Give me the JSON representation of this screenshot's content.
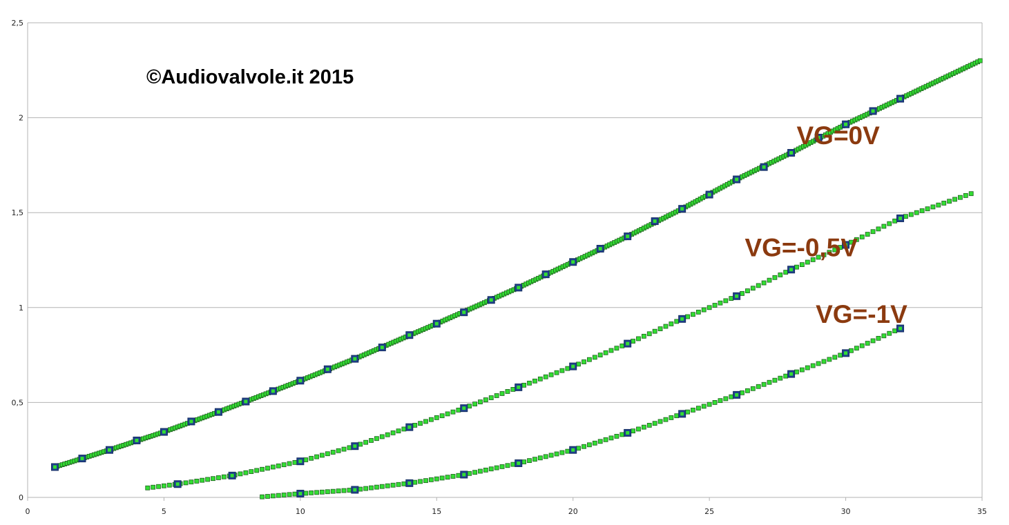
{
  "watermark": "©Audiovalvole.it 2015",
  "colors": {
    "background": "#ffffff",
    "grid": "#b3b3b3",
    "label": "#8b3a0f",
    "marker_fill": "#33dd33",
    "marker_edge": "#1f5f1f",
    "measured_fill": "#1f3f8f"
  },
  "chart_data": {
    "type": "scatter",
    "title": "",
    "xlabel": "",
    "ylabel": "",
    "xlim": [
      0,
      35
    ],
    "ylim": [
      0,
      2.5
    ],
    "grid": true,
    "legend": "none",
    "x_ticks": [
      "0",
      "5",
      "10",
      "15",
      "20",
      "25",
      "30",
      "35"
    ],
    "y_ticks": [
      "0",
      "0,5",
      "1",
      "1,5",
      "2",
      "2,5"
    ],
    "series": [
      {
        "name": "VG=0V",
        "label_anchor": {
          "x": 28.2,
          "y": 1.86
        },
        "curve": {
          "x_start": 1,
          "x_end": 35,
          "points": [
            [
              1,
              0.16
            ],
            [
              3,
              0.25
            ],
            [
              5,
              0.345
            ],
            [
              7,
              0.45
            ],
            [
              10,
              0.615
            ],
            [
              12,
              0.73
            ],
            [
              15,
              0.915
            ],
            [
              18,
              1.105
            ],
            [
              20,
              1.24
            ],
            [
              22,
              1.375
            ],
            [
              24,
              1.52
            ],
            [
              26,
              1.675
            ],
            [
              28,
              1.815
            ],
            [
              30,
              1.965
            ],
            [
              32,
              2.1
            ],
            [
              35,
              2.305
            ]
          ]
        },
        "measured": [
          [
            1,
            0.16
          ],
          [
            2,
            0.205
          ],
          [
            3,
            0.25
          ],
          [
            4,
            0.3
          ],
          [
            5,
            0.345
          ],
          [
            6,
            0.4
          ],
          [
            7,
            0.45
          ],
          [
            8,
            0.505
          ],
          [
            9,
            0.56
          ],
          [
            10,
            0.615
          ],
          [
            11,
            0.675
          ],
          [
            12,
            0.73
          ],
          [
            13,
            0.79
          ],
          [
            14,
            0.855
          ],
          [
            15,
            0.915
          ],
          [
            16,
            0.975
          ],
          [
            17,
            1.04
          ],
          [
            18,
            1.105
          ],
          [
            19,
            1.175
          ],
          [
            20,
            1.24
          ],
          [
            21,
            1.31
          ],
          [
            22,
            1.375
          ],
          [
            23,
            1.455
          ],
          [
            24,
            1.52
          ],
          [
            25,
            1.595
          ],
          [
            26,
            1.675
          ],
          [
            27,
            1.74
          ],
          [
            28,
            1.815
          ],
          [
            29,
            1.895
          ],
          [
            30,
            1.965
          ],
          [
            31,
            2.035
          ],
          [
            32,
            2.1
          ]
        ]
      },
      {
        "name": "VG=-0,5V",
        "label_anchor": {
          "x": 26.3,
          "y": 1.27
        },
        "curve": {
          "x_start": 4.4,
          "x_end": 34.6,
          "points": [
            [
              4.4,
              0.05
            ],
            [
              5.5,
              0.07
            ],
            [
              7.5,
              0.115
            ],
            [
              10,
              0.19
            ],
            [
              12,
              0.27
            ],
            [
              14,
              0.37
            ],
            [
              16,
              0.47
            ],
            [
              18,
              0.58
            ],
            [
              20,
              0.69
            ],
            [
              22,
              0.81
            ],
            [
              24,
              0.94
            ],
            [
              26,
              1.06
            ],
            [
              28,
              1.2
            ],
            [
              30,
              1.33
            ],
            [
              32,
              1.47
            ],
            [
              34.6,
              1.6
            ]
          ]
        },
        "measured": [
          [
            5.5,
            0.07
          ],
          [
            7.5,
            0.115
          ],
          [
            10,
            0.19
          ],
          [
            12,
            0.27
          ],
          [
            14,
            0.37
          ],
          [
            16,
            0.47
          ],
          [
            18,
            0.58
          ],
          [
            20,
            0.69
          ],
          [
            22,
            0.81
          ],
          [
            24,
            0.94
          ],
          [
            26,
            1.06
          ],
          [
            28,
            1.2
          ],
          [
            30,
            1.33
          ],
          [
            32,
            1.47
          ]
        ]
      },
      {
        "name": "VG=-1V",
        "label_anchor": {
          "x": 28.9,
          "y": 0.92
        },
        "curve": {
          "x_start": 8.6,
          "x_end": 32,
          "points": [
            [
              8.6,
              0.003
            ],
            [
              10,
              0.02
            ],
            [
              12,
              0.04
            ],
            [
              14,
              0.075
            ],
            [
              16,
              0.12
            ],
            [
              18,
              0.18
            ],
            [
              20,
              0.25
            ],
            [
              22,
              0.34
            ],
            [
              24,
              0.44
            ],
            [
              26,
              0.54
            ],
            [
              28,
              0.65
            ],
            [
              30,
              0.76
            ],
            [
              32,
              0.89
            ]
          ]
        },
        "measured": [
          [
            10,
            0.02
          ],
          [
            12,
            0.04
          ],
          [
            14,
            0.075
          ],
          [
            16,
            0.12
          ],
          [
            18,
            0.18
          ],
          [
            20,
            0.25
          ],
          [
            22,
            0.34
          ],
          [
            24,
            0.44
          ],
          [
            26,
            0.54
          ],
          [
            28,
            0.65
          ],
          [
            30,
            0.76
          ],
          [
            32,
            0.89
          ]
        ]
      }
    ]
  }
}
